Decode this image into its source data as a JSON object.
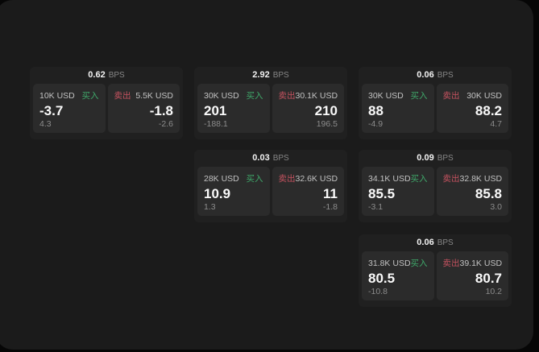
{
  "colors": {
    "page_background": "#060606",
    "panel_background": "#1b1b1b",
    "card_background": "#202020",
    "tile_background": "#2b2b2b",
    "buy_accent": "#3fa86a",
    "sell_accent": "#c4525f",
    "primary_text": "#fafafa",
    "muted_text": "#8c8c8c"
  },
  "cards": [
    {
      "bps_value": "0.62",
      "bps_label": "BPS",
      "buy": {
        "amount": "10K USD",
        "side_label": "买入",
        "price": "-3.7",
        "delta": "4.3"
      },
      "sell": {
        "side_label": "卖出",
        "amount": "5.5K USD",
        "price": "-1.8",
        "delta": "-2.6"
      }
    },
    {
      "bps_value": "2.92",
      "bps_label": "BPS",
      "buy": {
        "amount": "30K USD",
        "side_label": "买入",
        "price": "201",
        "delta": "-188.1"
      },
      "sell": {
        "side_label": "卖出",
        "amount": "30.1K USD",
        "price": "210",
        "delta": "196.5"
      }
    },
    {
      "bps_value": "0.06",
      "bps_label": "BPS",
      "buy": {
        "amount": "30K USD",
        "side_label": "买入",
        "price": "88",
        "delta": "-4.9"
      },
      "sell": {
        "side_label": "卖出",
        "amount": "30K USD",
        "price": "88.2",
        "delta": "4.7"
      }
    },
    {
      "bps_value": "0.03",
      "bps_label": "BPS",
      "buy": {
        "amount": "28K USD",
        "side_label": "买入",
        "price": "10.9",
        "delta": "1.3"
      },
      "sell": {
        "side_label": "卖出",
        "amount": "32.6K USD",
        "price": "11",
        "delta": "-1.8"
      }
    },
    {
      "bps_value": "0.09",
      "bps_label": "BPS",
      "buy": {
        "amount": "34.1K USD",
        "side_label": "买入",
        "price": "85.5",
        "delta": "-3.1"
      },
      "sell": {
        "side_label": "卖出",
        "amount": "32.8K USD",
        "price": "85.8",
        "delta": "3.0"
      }
    },
    {
      "bps_value": "0.06",
      "bps_label": "BPS",
      "buy": {
        "amount": "31.8K USD",
        "side_label": "买入",
        "price": "80.5",
        "delta": "-10.8"
      },
      "sell": {
        "side_label": "卖出",
        "amount": "39.1K USD",
        "price": "80.7",
        "delta": "10.2"
      }
    }
  ]
}
